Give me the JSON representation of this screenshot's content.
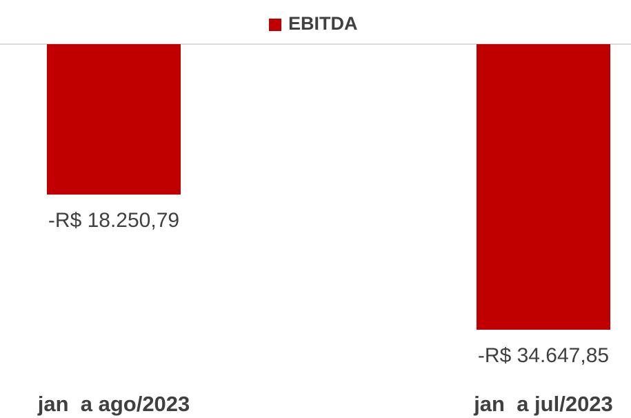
{
  "chart_data": {
    "type": "bar",
    "categories": [
      "jan  a ago/2023",
      "jan  a jul/2023"
    ],
    "series": [
      {
        "name": "EBITDA",
        "color": "#c00000",
        "values": [
          -18250.79,
          -34647.85
        ],
        "value_labels": [
          "-R$ 18.250,79",
          "-R$ 34.647,85"
        ]
      }
    ],
    "legend": "top"
  }
}
